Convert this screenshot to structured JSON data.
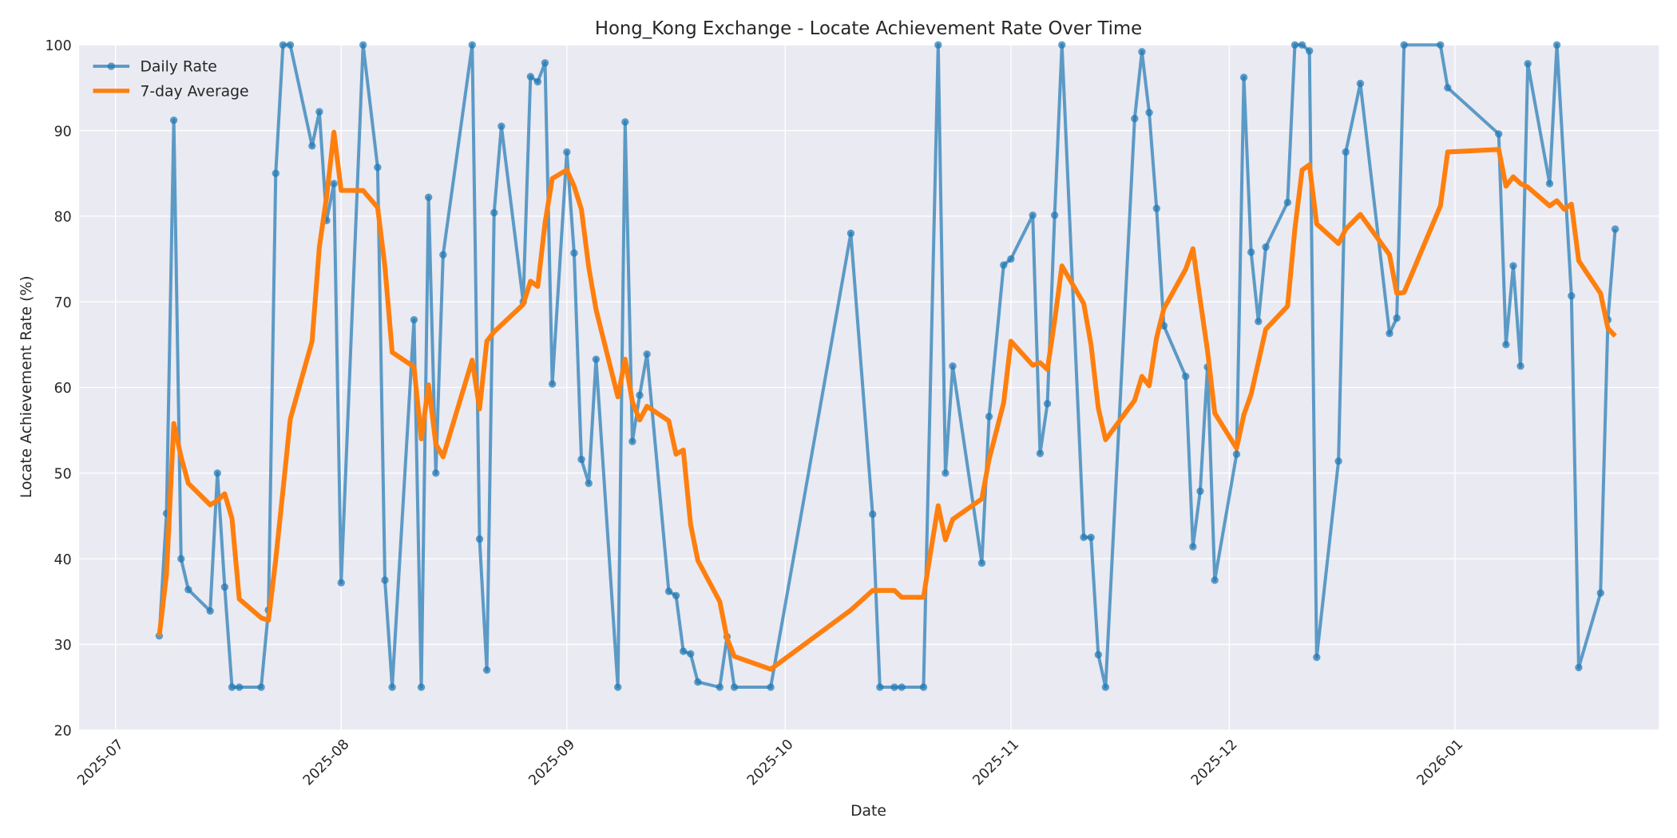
{
  "chart_data": {
    "type": "line",
    "title": "Hong_Kong Exchange - Locate Achievement Rate Over Time",
    "xlabel": "Date",
    "ylabel": "Locate Achievement Rate (%)",
    "ylim": [
      20,
      100
    ],
    "yticks": [
      20,
      30,
      40,
      50,
      60,
      70,
      80,
      90,
      100
    ],
    "xticks": [
      "2025-07",
      "2025-08",
      "2025-09",
      "2025-10",
      "2025-11",
      "2025-12",
      "2026-01"
    ],
    "xtick_dates": [
      "2025-07-01",
      "2025-08-01",
      "2025-09-01",
      "2025-10-01",
      "2025-11-01",
      "2025-12-01",
      "2026-01-01"
    ],
    "xlim": [
      "2025-06-26",
      "2026-01-29"
    ],
    "grid": true,
    "legend_position": "upper left",
    "colors": {
      "daily": "#1f77b4",
      "average": "#ff7f0e",
      "plot_bg": "#eaeaf2",
      "grid": "#ffffff"
    },
    "series": [
      {
        "name": "Daily Rate",
        "marker": "circle",
        "points": [
          [
            "2025-07-07",
            31.0
          ],
          [
            "2025-07-08",
            45.3
          ],
          [
            "2025-07-09",
            91.2
          ],
          [
            "2025-07-10",
            40.0
          ],
          [
            "2025-07-11",
            36.4
          ],
          [
            "2025-07-14",
            33.9
          ],
          [
            "2025-07-15",
            50.0
          ],
          [
            "2025-07-16",
            36.7
          ],
          [
            "2025-07-17",
            25.0
          ],
          [
            "2025-07-18",
            25.0
          ],
          [
            "2025-07-21",
            25.0
          ],
          [
            "2025-07-22",
            34.0
          ],
          [
            "2025-07-23",
            85.0
          ],
          [
            "2025-07-24",
            100.0
          ],
          [
            "2025-07-25",
            100.0
          ],
          [
            "2025-07-28",
            88.2
          ],
          [
            "2025-07-29",
            92.2
          ],
          [
            "2025-07-30",
            79.5
          ],
          [
            "2025-07-31",
            83.8
          ],
          [
            "2025-08-01",
            37.2
          ],
          [
            "2025-08-04",
            100.0
          ],
          [
            "2025-08-06",
            85.7
          ],
          [
            "2025-08-07",
            37.5
          ],
          [
            "2025-08-08",
            25.0
          ],
          [
            "2025-08-11",
            67.9
          ],
          [
            "2025-08-12",
            25.0
          ],
          [
            "2025-08-13",
            82.2
          ],
          [
            "2025-08-14",
            50.0
          ],
          [
            "2025-08-15",
            75.5
          ],
          [
            "2025-08-19",
            100.0
          ],
          [
            "2025-08-20",
            42.3
          ],
          [
            "2025-08-21",
            27.0
          ],
          [
            "2025-08-22",
            80.4
          ],
          [
            "2025-08-23",
            90.5
          ],
          [
            "2025-08-26",
            70.0
          ],
          [
            "2025-08-27",
            96.3
          ],
          [
            "2025-08-28",
            95.7
          ],
          [
            "2025-08-29",
            97.9
          ],
          [
            "2025-08-30",
            60.4
          ],
          [
            "2025-09-01",
            87.5
          ],
          [
            "2025-09-02",
            75.7
          ],
          [
            "2025-09-03",
            51.6
          ],
          [
            "2025-09-04",
            48.8
          ],
          [
            "2025-09-05",
            63.3
          ],
          [
            "2025-09-08",
            25.0
          ],
          [
            "2025-09-09",
            91.0
          ],
          [
            "2025-09-10",
            53.7
          ],
          [
            "2025-09-11",
            59.1
          ],
          [
            "2025-09-12",
            63.9
          ],
          [
            "2025-09-15",
            36.2
          ],
          [
            "2025-09-16",
            35.7
          ],
          [
            "2025-09-17",
            29.2
          ],
          [
            "2025-09-18",
            28.9
          ],
          [
            "2025-09-19",
            25.6
          ],
          [
            "2025-09-22",
            25.0
          ],
          [
            "2025-09-23",
            30.9
          ],
          [
            "2025-09-24",
            25.0
          ],
          [
            "2025-09-29",
            25.0
          ],
          [
            "2025-10-10",
            78.0
          ],
          [
            "2025-10-13",
            45.2
          ],
          [
            "2025-10-14",
            25.0
          ],
          [
            "2025-10-16",
            25.0
          ],
          [
            "2025-10-17",
            25.0
          ],
          [
            "2025-10-20",
            25.0
          ],
          [
            "2025-10-22",
            100.0
          ],
          [
            "2025-10-23",
            50.0
          ],
          [
            "2025-10-24",
            62.5
          ],
          [
            "2025-10-28",
            39.5
          ],
          [
            "2025-10-29",
            56.6
          ],
          [
            "2025-10-31",
            74.3
          ],
          [
            "2025-11-01",
            75.0
          ],
          [
            "2025-11-04",
            80.1
          ],
          [
            "2025-11-05",
            52.3
          ],
          [
            "2025-11-06",
            58.1
          ],
          [
            "2025-11-07",
            80.1
          ],
          [
            "2025-11-08",
            100.0
          ],
          [
            "2025-11-11",
            42.5
          ],
          [
            "2025-11-12",
            42.5
          ],
          [
            "2025-11-13",
            28.8
          ],
          [
            "2025-11-14",
            25.0
          ],
          [
            "2025-11-18",
            91.4
          ],
          [
            "2025-11-19",
            99.2
          ],
          [
            "2025-11-20",
            92.1
          ],
          [
            "2025-11-21",
            80.9
          ],
          [
            "2025-11-22",
            67.2
          ],
          [
            "2025-11-25",
            61.3
          ],
          [
            "2025-11-26",
            41.4
          ],
          [
            "2025-11-27",
            47.9
          ],
          [
            "2025-11-28",
            62.4
          ],
          [
            "2025-11-29",
            37.5
          ],
          [
            "2025-12-02",
            52.2
          ],
          [
            "2025-12-03",
            96.2
          ],
          [
            "2025-12-04",
            75.8
          ],
          [
            "2025-12-05",
            67.7
          ],
          [
            "2025-12-06",
            76.4
          ],
          [
            "2025-12-09",
            81.6
          ],
          [
            "2025-12-10",
            100.0
          ],
          [
            "2025-12-11",
            100.0
          ],
          [
            "2025-12-12",
            99.3
          ],
          [
            "2025-12-13",
            28.5
          ],
          [
            "2025-12-16",
            51.4
          ],
          [
            "2025-12-17",
            87.5
          ],
          [
            "2025-12-19",
            95.5
          ],
          [
            "2025-12-23",
            66.3
          ],
          [
            "2025-12-24",
            68.1
          ],
          [
            "2025-12-25",
            100.0
          ],
          [
            "2025-12-30",
            100.0
          ],
          [
            "2025-12-31",
            95.0
          ],
          [
            "2026-01-07",
            89.6
          ],
          [
            "2026-01-08",
            65.0
          ],
          [
            "2026-01-09",
            74.2
          ],
          [
            "2026-01-10",
            62.5
          ],
          [
            "2026-01-11",
            97.8
          ],
          [
            "2026-01-14",
            83.8
          ],
          [
            "2026-01-15",
            100.0
          ],
          [
            "2026-01-17",
            70.7
          ],
          [
            "2026-01-18",
            27.3
          ],
          [
            "2026-01-21",
            36.0
          ],
          [
            "2026-01-22",
            67.9
          ],
          [
            "2026-01-23",
            78.5
          ]
        ]
      },
      {
        "name": "7-day Average",
        "marker": "none",
        "points": [
          [
            "2025-07-07",
            31.0
          ],
          [
            "2025-07-08",
            38.2
          ],
          [
            "2025-07-09",
            55.8
          ],
          [
            "2025-07-10",
            51.9
          ],
          [
            "2025-07-11",
            48.8
          ],
          [
            "2025-07-14",
            46.3
          ],
          [
            "2025-07-15",
            46.8
          ],
          [
            "2025-07-16",
            47.6
          ],
          [
            "2025-07-17",
            44.7
          ],
          [
            "2025-07-18",
            35.3
          ],
          [
            "2025-07-21",
            33.1
          ],
          [
            "2025-07-22",
            32.8
          ],
          [
            "2025-07-23",
            39.9
          ],
          [
            "2025-07-24",
            48.0
          ],
          [
            "2025-07-25",
            56.3
          ],
          [
            "2025-07-28",
            65.4
          ],
          [
            "2025-07-29",
            76.4
          ],
          [
            "2025-07-30",
            82.3
          ],
          [
            "2025-07-31",
            89.8
          ],
          [
            "2025-08-01",
            83.0
          ],
          [
            "2025-08-04",
            83.0
          ],
          [
            "2025-08-06",
            81.0
          ],
          [
            "2025-08-07",
            74.1
          ],
          [
            "2025-08-08",
            64.1
          ],
          [
            "2025-08-11",
            62.4
          ],
          [
            "2025-08-12",
            54.0
          ],
          [
            "2025-08-13",
            60.3
          ],
          [
            "2025-08-14",
            53.4
          ],
          [
            "2025-08-15",
            51.9
          ],
          [
            "2025-08-19",
            63.2
          ],
          [
            "2025-08-20",
            57.5
          ],
          [
            "2025-08-21",
            65.4
          ],
          [
            "2025-08-22",
            66.5
          ],
          [
            "2025-08-26",
            69.7
          ],
          [
            "2025-08-27",
            72.4
          ],
          [
            "2025-08-28",
            71.8
          ],
          [
            "2025-08-29",
            79.2
          ],
          [
            "2025-08-30",
            84.4
          ],
          [
            "2025-09-01",
            85.4
          ],
          [
            "2025-09-02",
            83.5
          ],
          [
            "2025-09-03",
            80.8
          ],
          [
            "2025-09-04",
            74.0
          ],
          [
            "2025-09-05",
            69.1
          ],
          [
            "2025-09-08",
            58.9
          ],
          [
            "2025-09-09",
            63.3
          ],
          [
            "2025-09-10",
            58.3
          ],
          [
            "2025-09-11",
            56.2
          ],
          [
            "2025-09-12",
            57.8
          ],
          [
            "2025-09-15",
            56.1
          ],
          [
            "2025-09-16",
            52.2
          ],
          [
            "2025-09-17",
            52.7
          ],
          [
            "2025-09-18",
            44.0
          ],
          [
            "2025-09-19",
            39.8
          ],
          [
            "2025-09-22",
            35.0
          ],
          [
            "2025-09-23",
            30.7
          ],
          [
            "2025-09-24",
            28.6
          ],
          [
            "2025-09-29",
            27.1
          ],
          [
            "2025-10-10",
            34.0
          ],
          [
            "2025-10-13",
            36.3
          ],
          [
            "2025-10-16",
            36.3
          ],
          [
            "2025-10-17",
            35.5
          ],
          [
            "2025-10-20",
            35.5
          ],
          [
            "2025-10-21",
            41.0
          ],
          [
            "2025-10-22",
            46.2
          ],
          [
            "2025-10-23",
            42.2
          ],
          [
            "2025-10-24",
            44.6
          ],
          [
            "2025-10-28",
            47.0
          ],
          [
            "2025-10-29",
            51.6
          ],
          [
            "2025-10-31",
            58.2
          ],
          [
            "2025-11-01",
            65.4
          ],
          [
            "2025-11-04",
            62.6
          ],
          [
            "2025-11-05",
            62.9
          ],
          [
            "2025-11-06",
            62.1
          ],
          [
            "2025-11-07",
            67.8
          ],
          [
            "2025-11-08",
            74.2
          ],
          [
            "2025-11-11",
            69.8
          ],
          [
            "2025-11-12",
            65.0
          ],
          [
            "2025-11-13",
            57.6
          ],
          [
            "2025-11-14",
            53.9
          ],
          [
            "2025-11-18",
            58.5
          ],
          [
            "2025-11-19",
            61.3
          ],
          [
            "2025-11-20",
            60.2
          ],
          [
            "2025-11-21",
            65.8
          ],
          [
            "2025-11-22",
            69.2
          ],
          [
            "2025-11-25",
            73.8
          ],
          [
            "2025-11-26",
            76.2
          ],
          [
            "2025-11-27",
            70.2
          ],
          [
            "2025-11-28",
            64.3
          ],
          [
            "2025-11-29",
            57.0
          ],
          [
            "2025-12-02",
            52.9
          ],
          [
            "2025-12-03",
            56.8
          ],
          [
            "2025-12-04",
            59.2
          ],
          [
            "2025-12-06",
            66.8
          ],
          [
            "2025-12-09",
            69.5
          ],
          [
            "2025-12-10",
            78.5
          ],
          [
            "2025-12-11",
            85.4
          ],
          [
            "2025-12-12",
            86.0
          ],
          [
            "2025-12-13",
            79.1
          ],
          [
            "2025-12-16",
            76.8
          ],
          [
            "2025-12-17",
            78.5
          ],
          [
            "2025-12-19",
            80.2
          ],
          [
            "2025-12-23",
            75.5
          ],
          [
            "2025-12-24",
            71.0
          ],
          [
            "2025-12-25",
            71.1
          ],
          [
            "2025-12-30",
            81.2
          ],
          [
            "2025-12-31",
            87.5
          ],
          [
            "2026-01-07",
            87.8
          ],
          [
            "2026-01-08",
            83.5
          ],
          [
            "2026-01-09",
            84.6
          ],
          [
            "2026-01-10",
            83.8
          ],
          [
            "2026-01-11",
            83.4
          ],
          [
            "2026-01-14",
            81.2
          ],
          [
            "2026-01-15",
            81.8
          ],
          [
            "2026-01-16",
            80.8
          ],
          [
            "2026-01-17",
            81.4
          ],
          [
            "2026-01-18",
            74.8
          ],
          [
            "2026-01-21",
            71.0
          ],
          [
            "2026-01-22",
            66.9
          ],
          [
            "2026-01-23",
            66.0
          ]
        ]
      }
    ]
  }
}
